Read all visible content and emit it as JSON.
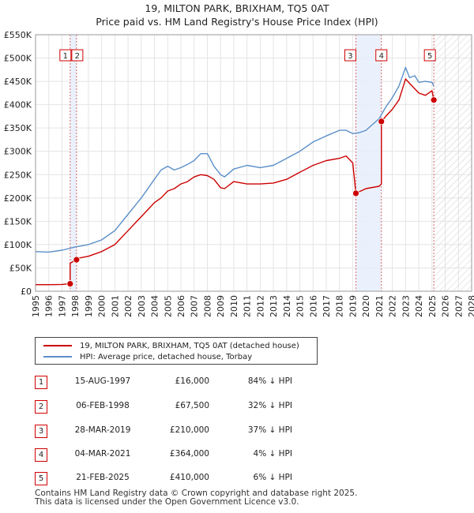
{
  "title_line1": "19, MILTON PARK, BRIXHAM, TQ5 0AT",
  "title_line2": "Price paid vs. HM Land Registry's House Price Index (HPI)",
  "chart_data": {
    "type": "line",
    "xlim": [
      1995,
      2028
    ],
    "ylim": [
      0,
      550000
    ],
    "x_ticks": [
      1995,
      1996,
      1997,
      1998,
      1999,
      2000,
      2001,
      2002,
      2003,
      2004,
      2005,
      2006,
      2007,
      2008,
      2009,
      2010,
      2011,
      2012,
      2013,
      2014,
      2015,
      2016,
      2017,
      2018,
      2019,
      2020,
      2021,
      2022,
      2023,
      2024,
      2025,
      2026,
      2027,
      2028
    ],
    "y_ticks": [
      {
        "value": 0,
        "label": "£0"
      },
      {
        "value": 50000,
        "label": "£50K"
      },
      {
        "value": 100000,
        "label": "£100K"
      },
      {
        "value": 150000,
        "label": "£150K"
      },
      {
        "value": 200000,
        "label": "£200K"
      },
      {
        "value": 250000,
        "label": "£250K"
      },
      {
        "value": 300000,
        "label": "£300K"
      },
      {
        "value": 350000,
        "label": "£350K"
      },
      {
        "value": 400000,
        "label": "£400K"
      },
      {
        "value": 450000,
        "label": "£450K"
      },
      {
        "value": 500000,
        "label": "£500K"
      },
      {
        "value": 550000,
        "label": "£550K"
      }
    ],
    "shaded_ranges": [
      [
        1997.62,
        1998.1
      ],
      [
        2019.24,
        2021.17
      ]
    ],
    "future_hatch_from": 2025.14,
    "series": [
      {
        "name": "19, MILTON PARK, BRIXHAM, TQ5 0AT (detached house)",
        "color": "#cc0000",
        "x": [
          1995.0,
          1996.0,
          1997.0,
          1997.62,
          1997.62,
          1997.8,
          1998.1,
          1998.1,
          1999.0,
          2000.0,
          2001.0,
          2002.0,
          2003.0,
          2003.5,
          2004.0,
          2004.5,
          2005.0,
          2005.5,
          2006.0,
          2006.5,
          2007.0,
          2007.5,
          2008.0,
          2008.5,
          2009.0,
          2009.3,
          2010.0,
          2011.0,
          2012.0,
          2013.0,
          2014.0,
          2015.0,
          2016.0,
          2017.0,
          2018.0,
          2018.5,
          2019.0,
          2019.24,
          2019.24,
          2020.0,
          2021.0,
          2021.17,
          2021.17,
          2021.5,
          2022.0,
          2022.5,
          2023.0,
          2023.5,
          2024.0,
          2024.5,
          2025.0,
          2025.14
        ],
        "values": [
          14000,
          14000,
          14500,
          16000,
          60000,
          63000,
          67500,
          70000,
          75000,
          85000,
          100000,
          130000,
          160000,
          175000,
          190000,
          200000,
          215000,
          220000,
          230000,
          235000,
          245000,
          250000,
          248000,
          240000,
          222000,
          220000,
          235000,
          230000,
          230000,
          232000,
          240000,
          255000,
          270000,
          280000,
          285000,
          290000,
          275000,
          210000,
          210000,
          220000,
          225000,
          230000,
          364000,
          375000,
          390000,
          410000,
          455000,
          440000,
          425000,
          420000,
          430000,
          410000
        ]
      },
      {
        "name": "HPI: Average price, detached house, Torbay",
        "color": "#5b8fc8",
        "x": [
          1995.0,
          1996.0,
          1997.0,
          1998.0,
          1999.0,
          2000.0,
          2001.0,
          2002.0,
          2003.0,
          2004.0,
          2004.5,
          2005.0,
          2005.5,
          2006.0,
          2006.5,
          2007.0,
          2007.5,
          2008.0,
          2008.5,
          2009.0,
          2009.3,
          2010.0,
          2011.0,
          2012.0,
          2013.0,
          2014.0,
          2015.0,
          2016.0,
          2017.0,
          2018.0,
          2018.5,
          2019.0,
          2019.5,
          2020.0,
          2021.0,
          2021.5,
          2022.0,
          2022.5,
          2023.0,
          2023.3,
          2023.7,
          2024.0,
          2024.5,
          2025.0,
          2025.14
        ],
        "values": [
          85000,
          84000,
          88000,
          95000,
          100000,
          110000,
          130000,
          165000,
          200000,
          240000,
          260000,
          268000,
          260000,
          265000,
          272000,
          280000,
          295000,
          295000,
          268000,
          250000,
          245000,
          262000,
          270000,
          265000,
          270000,
          285000,
          300000,
          320000,
          333000,
          345000,
          345000,
          338000,
          340000,
          345000,
          370000,
          395000,
          415000,
          440000,
          480000,
          458000,
          462000,
          448000,
          450000,
          448000,
          440000
        ]
      }
    ],
    "sales": [
      {
        "num": "1",
        "x": 1997.62,
        "value": 16000
      },
      {
        "num": "2",
        "x": 1998.1,
        "value": 67500
      },
      {
        "num": "3",
        "x": 2019.24,
        "value": 210000
      },
      {
        "num": "4",
        "x": 2021.17,
        "value": 364000
      },
      {
        "num": "5",
        "x": 2025.14,
        "value": 410000
      }
    ]
  },
  "legend": {
    "property": "19, MILTON PARK, BRIXHAM, TQ5 0AT (detached house)",
    "hpi": "HPI: Average price, detached house, Torbay"
  },
  "transactions": [
    {
      "num": "1",
      "date": "15-AUG-1997",
      "price": "£16,000",
      "hpi": "84% ↓ HPI"
    },
    {
      "num": "2",
      "date": "06-FEB-1998",
      "price": "£67,500",
      "hpi": "32% ↓ HPI"
    },
    {
      "num": "3",
      "date": "28-MAR-2019",
      "price": "£210,000",
      "hpi": "37% ↓ HPI"
    },
    {
      "num": "4",
      "date": "04-MAR-2021",
      "price": "£364,000",
      "hpi": "4% ↓ HPI"
    },
    {
      "num": "5",
      "date": "21-FEB-2025",
      "price": "£410,000",
      "hpi": "6% ↓ HPI"
    }
  ],
  "footer": {
    "line1": "Contains HM Land Registry data © Crown copyright and database right 2025.",
    "line2": "This data is licensed under the Open Government Licence v3.0."
  }
}
